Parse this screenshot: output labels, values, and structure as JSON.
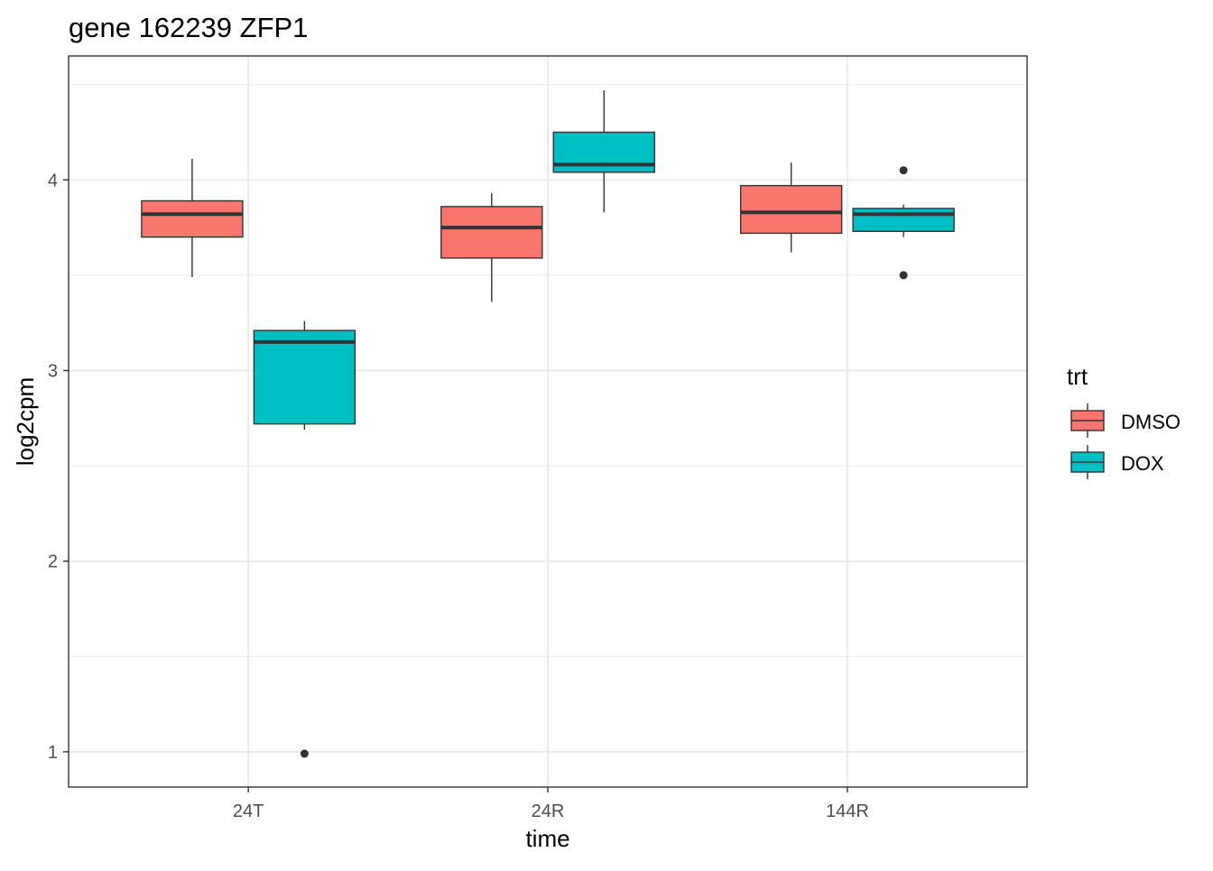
{
  "chart_data": {
    "type": "boxplot",
    "title": "gene 162239 ZFP1",
    "xlabel": "time",
    "ylabel": "log2cpm",
    "categories": [
      "24T",
      "24R",
      "144R"
    ],
    "ylim": [
      0.815,
      4.65
    ],
    "yticks": [
      1,
      2,
      3,
      4
    ],
    "ytick_labels": [
      "1",
      "2",
      "3",
      "4"
    ],
    "grid": true,
    "legend": {
      "title": "trt",
      "position": "right",
      "entries": [
        "DMSO",
        "DOX"
      ]
    },
    "colors": {
      "DMSO": "#F8766D",
      "DOX": "#00BFC4"
    },
    "series": [
      {
        "name": "DMSO",
        "boxes": [
          {
            "category": "24T",
            "lower": 3.49,
            "q1": 3.7,
            "median": 3.82,
            "q3": 3.89,
            "upper": 4.11,
            "outliers": []
          },
          {
            "category": "24R",
            "lower": 3.36,
            "q1": 3.59,
            "median": 3.75,
            "q3": 3.86,
            "upper": 3.93,
            "outliers": []
          },
          {
            "category": "144R",
            "lower": 3.62,
            "q1": 3.72,
            "median": 3.83,
            "q3": 3.97,
            "upper": 4.09,
            "outliers": []
          }
        ]
      },
      {
        "name": "DOX",
        "boxes": [
          {
            "category": "24T",
            "lower": 2.69,
            "q1": 2.72,
            "median": 3.15,
            "q3": 3.21,
            "upper": 3.26,
            "outliers": [
              0.99
            ]
          },
          {
            "category": "24R",
            "lower": 3.83,
            "q1": 4.04,
            "median": 4.08,
            "q3": 4.25,
            "upper": 4.47,
            "outliers": []
          },
          {
            "category": "144R",
            "lower": 3.7,
            "q1": 3.73,
            "median": 3.82,
            "q3": 3.85,
            "upper": 3.87,
            "outliers": [
              4.05,
              3.5
            ]
          }
        ]
      }
    ]
  }
}
